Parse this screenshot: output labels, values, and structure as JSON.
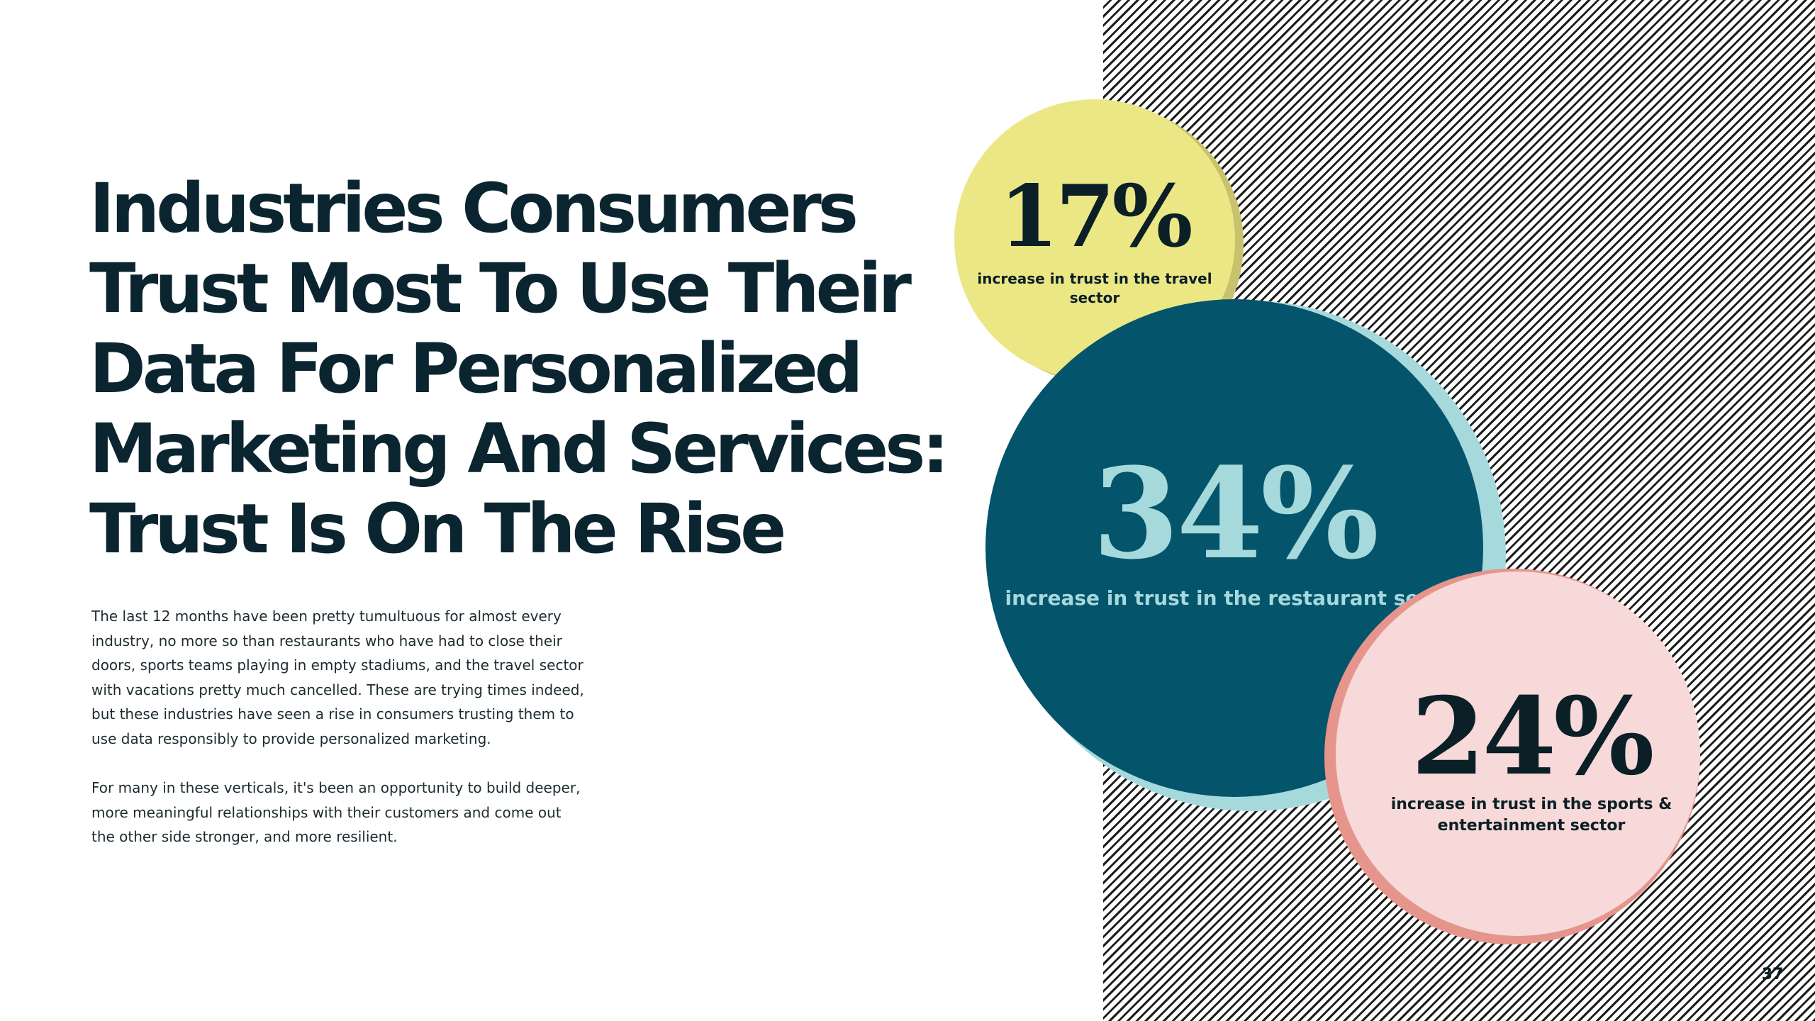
{
  "title": "Industries Consumers Trust Most To Use Their Data For Personalized Marketing And Services: Trust Is On The Rise",
  "body": {
    "paragraph_1": "The last 12 months have been pretty tumultuous for almost every industry, no more so than restaurants who have had to close their doors, sports teams playing in empty stadiums, and the travel sector with vacations pretty much cancelled. These are trying times indeed, but these industries have seen a rise in consumers trusting them to use data responsibly to provide personalized marketing.",
    "paragraph_2": "For many in these verticals, it's been an opportunity to build deeper, more meaningful relationships with their customers and come out the other side stronger, and more resilient."
  },
  "stats": {
    "travel": {
      "value": "17%",
      "caption": "increase in trust in the travel sector",
      "color": "#ebe785"
    },
    "restaurant": {
      "value": "34%",
      "caption": "increase in trust in the restaurant sector",
      "color": "#04546b"
    },
    "sports": {
      "value": "24%",
      "caption": "increase in trust in the sports & entertainment sector",
      "color": "#f6d9d8"
    }
  },
  "page_number": "37"
}
